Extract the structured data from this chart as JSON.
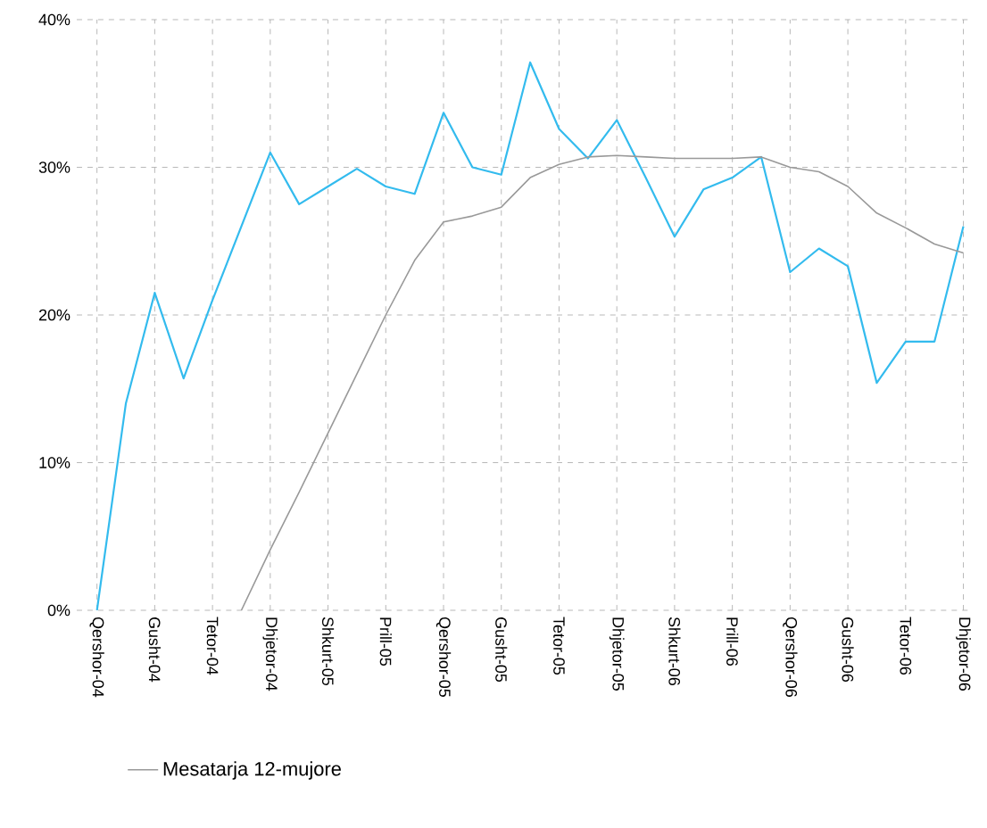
{
  "chart_data": {
    "type": "line",
    "categories": [
      "Qershor-04",
      null,
      "Gusht-04",
      null,
      "Tetor-04",
      null,
      "Dhjetor-04",
      null,
      "Shkurt-05",
      null,
      "Prill-05",
      null,
      "Qershor-05",
      null,
      "Gusht-05",
      null,
      "Tetor-05",
      null,
      "Dhjetor-05",
      null,
      "Shkurt-06",
      null,
      "Prill-06",
      null,
      "Qershor-06",
      null,
      "Gusht-06",
      null,
      "Tetor-06",
      null,
      "Dhjetor-06"
    ],
    "series": [
      {
        "color": "#33bbee",
        "values": [
          0,
          14,
          21.5,
          15.7,
          21,
          26,
          31,
          27.5,
          28.7,
          29.9,
          28.7,
          28.2,
          33.7,
          30,
          29.5,
          37.1,
          32.6,
          30.6,
          33.2,
          29.3,
          25.3,
          28.5,
          29.3,
          30.7,
          22.9,
          24.5,
          23.3,
          15.4,
          18.2,
          18.2,
          26
        ]
      },
      {
        "name": "Mesatarja 12-mujore",
        "color": "#999999",
        "values": [
          null,
          null,
          null,
          null,
          null,
          0,
          4.1,
          8,
          12,
          16,
          20,
          23.7,
          26.3,
          26.7,
          27.3,
          29.3,
          30.2,
          30.7,
          30.8,
          30.7,
          30.6,
          30.6,
          30.6,
          30.7,
          30,
          29.7,
          28.7,
          26.9,
          25.9,
          24.8,
          24.2
        ]
      }
    ],
    "ylim": [
      0,
      40
    ],
    "yticks": [
      {
        "value": 0,
        "label": "0%"
      },
      {
        "value": 10,
        "label": "10%"
      },
      {
        "value": 20,
        "label": "20%"
      },
      {
        "value": 30,
        "label": "30%"
      },
      {
        "value": 40,
        "label": "40%"
      }
    ],
    "grid": true,
    "legend": "bottom",
    "marker": "none",
    "line_style": "solid"
  }
}
